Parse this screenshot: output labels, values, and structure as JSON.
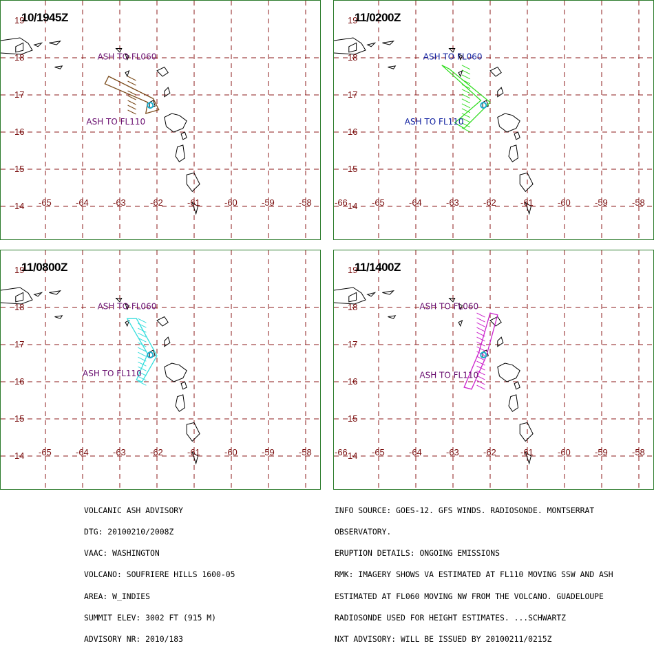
{
  "panels": [
    {
      "time": "10/1945Z",
      "color": "#7a4a1a",
      "label1": "ASH TO FL060",
      "label2": "ASH TO FL110",
      "label_color": "#6a1070",
      "first_lon_visible": false
    },
    {
      "time": "11/0200Z",
      "color": "#33dd22",
      "label1": "ASH TO FL060",
      "label2": "ASH TO FL110",
      "label_color": "#1020a0",
      "first_lon_visible": true
    },
    {
      "time": "11/0800Z",
      "color": "#33dddd",
      "label1": "ASH TO FL060",
      "label2": "ASH TO FL110",
      "label_color": "#6a1070",
      "first_lon_visible": false
    },
    {
      "time": "11/1400Z",
      "color": "#cc22cc",
      "label1": "ASH TO FL060",
      "label2": "ASH TO FL110",
      "label_color": "#6a1070",
      "first_lon_visible": true
    }
  ],
  "lon_ticks": [
    "-66",
    "-65",
    "-64",
    "-63",
    "-62",
    "-61",
    "-60",
    "-59",
    "-58"
  ],
  "lat_ticks": [
    "19",
    "18",
    "17",
    "16",
    "15",
    "14"
  ],
  "advisory_left": [
    "VOLCANIC ASH ADVISORY",
    "DTG: 20100210/2008Z",
    "VAAC: WASHINGTON",
    "VOLCANO: SOUFRIERE HILLS 1600-05",
    "AREA: W_INDIES",
    "SUMMIT ELEV: 3002 FT (915 M)",
    "ADVISORY NR: 2010/183"
  ],
  "advisory_right": [
    "INFO SOURCE: GOES-12. GFS WINDS. RADIOSONDE. MONTSERRAT",
    "OBSERVATORY.",
    "ERUPTION DETAILS: ONGOING EMISSIONS",
    "RMK: IMAGERY SHOWS VA ESTIMATED AT FL110 MOVING SSW AND ASH",
    "ESTIMATED AT FL060 MOVING NW FROM THE VOLCANO. GUADELOUPE",
    "RADIOSONDE USED FOR HEIGHT ESTIMATES. ...SCHWARTZ",
    "NXT ADVISORY: WILL BE ISSUED BY 20100211/0215Z"
  ]
}
